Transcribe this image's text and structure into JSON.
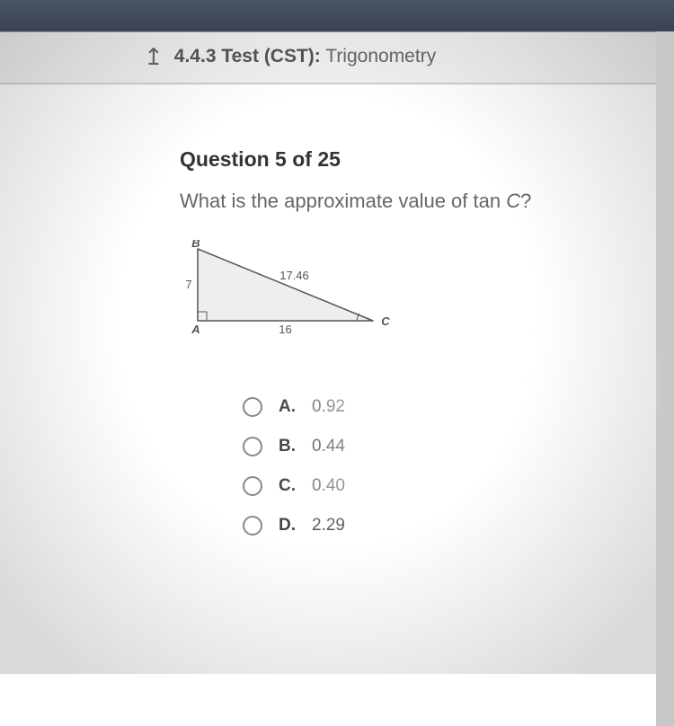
{
  "header": {
    "code": "4.4.3",
    "label_bold": "Test (CST):",
    "title": "Trigonometry"
  },
  "question": {
    "number_label": "Question 5 of 25",
    "prompt_prefix": "What is the approximate value of tan ",
    "prompt_var": "C",
    "prompt_suffix": "?"
  },
  "triangle": {
    "B": "B",
    "A": "A",
    "C": "C",
    "side_ab": "7",
    "side_ac": "16",
    "side_bc": "17.46",
    "points": {
      "B": [
        20,
        10
      ],
      "A": [
        20,
        90
      ],
      "C": [
        215,
        90
      ]
    },
    "stroke": "#555555",
    "label_color": "#555555",
    "font_size": 13
  },
  "answers": [
    {
      "letter": "A.",
      "value": "0.92"
    },
    {
      "letter": "B.",
      "value": "0.44"
    },
    {
      "letter": "C.",
      "value": "0.40"
    },
    {
      "letter": "D.",
      "value": "2.29"
    }
  ]
}
